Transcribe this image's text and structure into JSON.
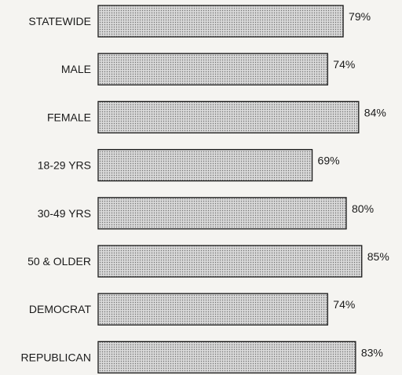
{
  "chart_data": {
    "type": "bar",
    "orientation": "horizontal",
    "categories": [
      "STATEWIDE",
      "MALE",
      "FEMALE",
      "18-29 YRS",
      "30-49 YRS",
      "50 & OLDER",
      "DEMOCRAT",
      "REPUBLICAN"
    ],
    "values": [
      79,
      74,
      84,
      69,
      80,
      85,
      74,
      83
    ],
    "value_labels": [
      "79%",
      "74%",
      "84%",
      "69%",
      "80%",
      "85%",
      "74%",
      "83%"
    ],
    "title": "",
    "xlabel": "",
    "ylabel": "",
    "xlim": [
      0,
      100
    ],
    "grid": false,
    "legend": "none",
    "bar_fill": "#d6d6d6",
    "bar_stroke": "#1a1a1a",
    "dot_color": "#6e6e6e"
  }
}
